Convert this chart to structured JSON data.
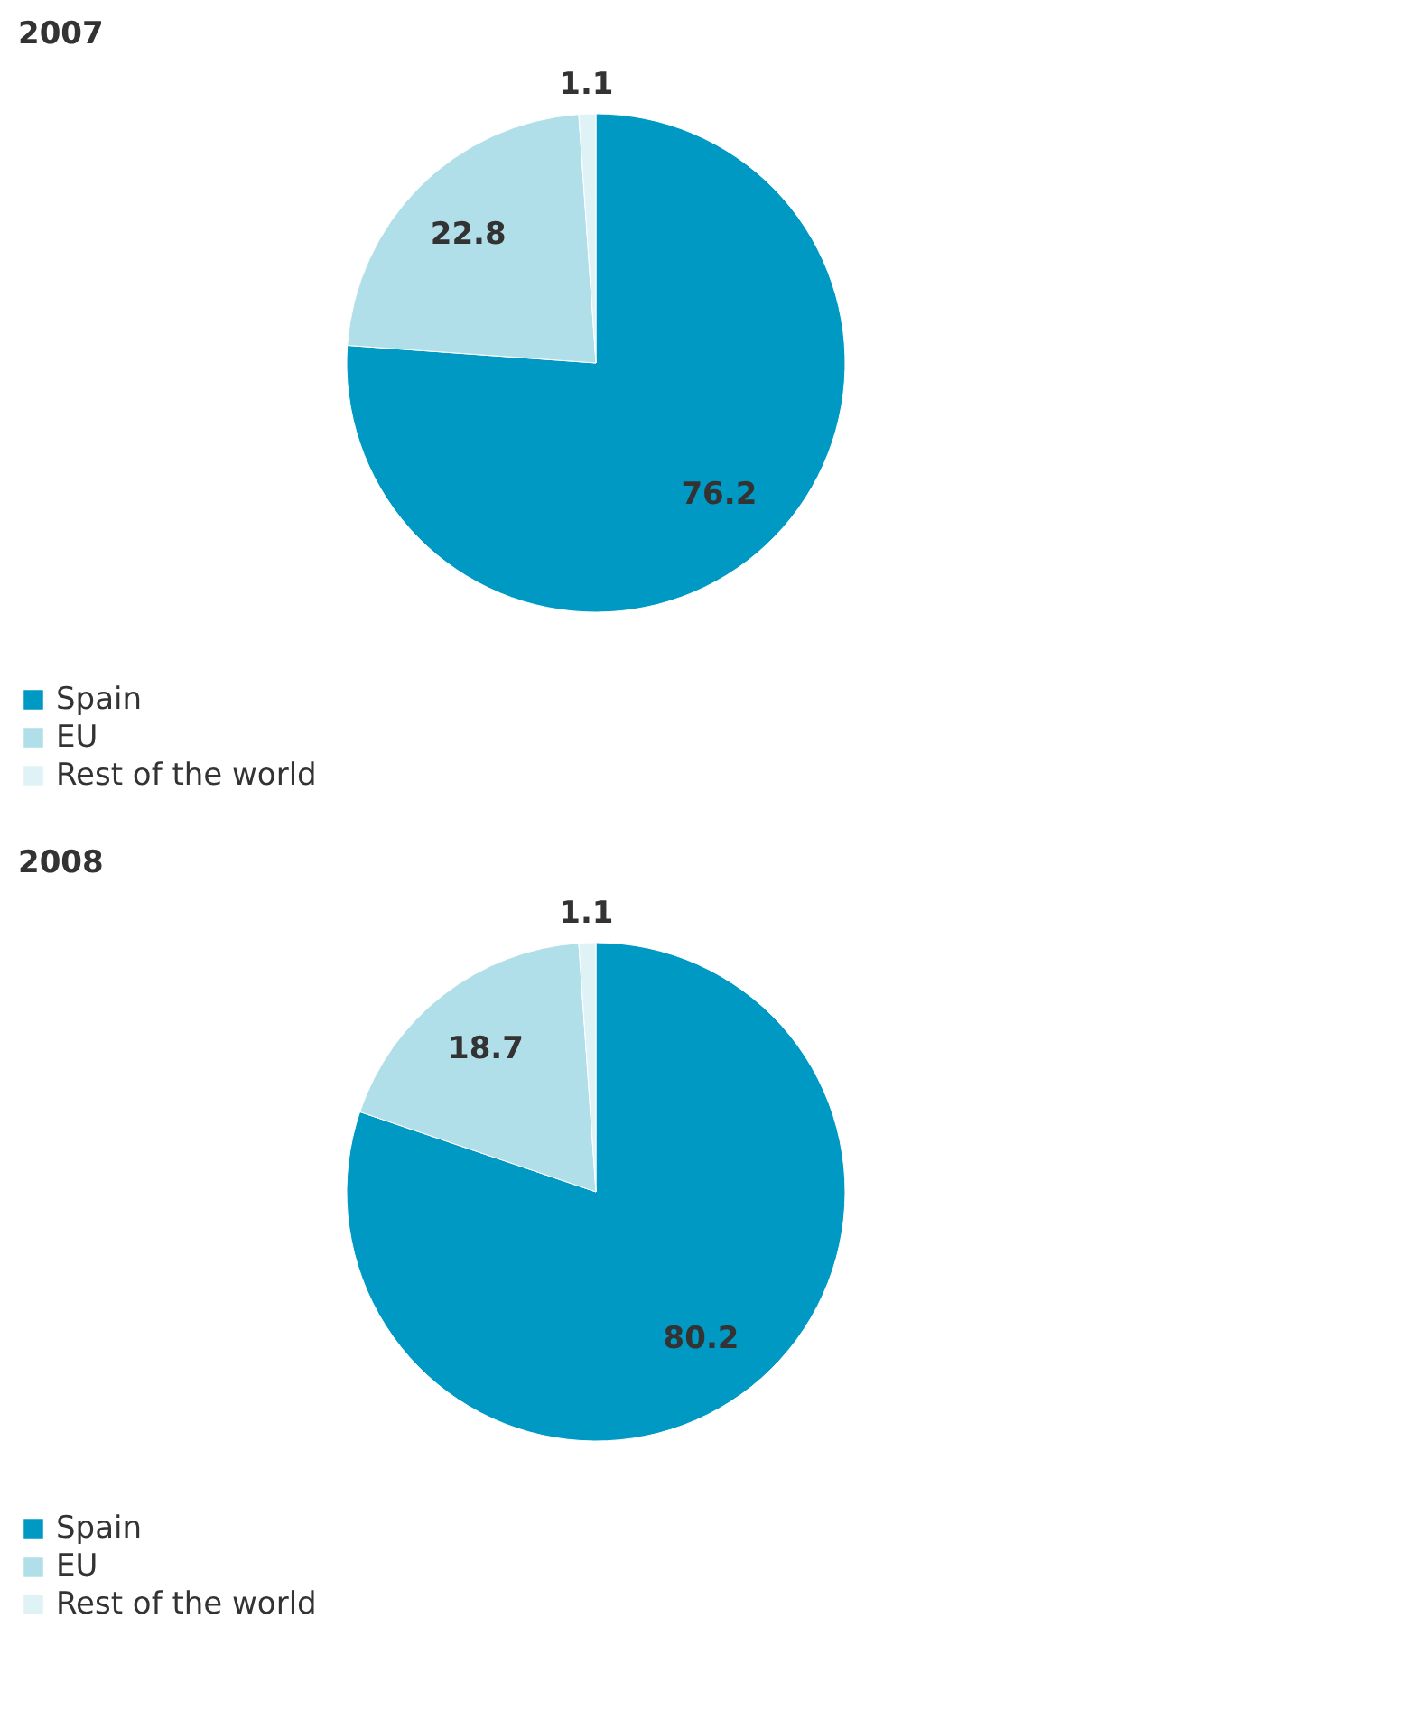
{
  "chart_data": [
    {
      "type": "pie",
      "title": "2007",
      "categories": [
        "Spain",
        "EU",
        "Rest of the world"
      ],
      "values": [
        76.2,
        22.8,
        1.1
      ],
      "colors": [
        "#0099c4",
        "#b0dfe9",
        "#dff2f6"
      ],
      "data_labels": true,
      "legend": "bottom"
    },
    {
      "type": "pie",
      "title": "2008",
      "categories": [
        "Spain",
        "EU",
        "Rest of the world"
      ],
      "values": [
        80.2,
        18.7,
        1.1
      ],
      "colors": [
        "#0099c4",
        "#b0dfe9",
        "#dff2f6"
      ],
      "data_labels": true,
      "legend": "bottom"
    }
  ]
}
